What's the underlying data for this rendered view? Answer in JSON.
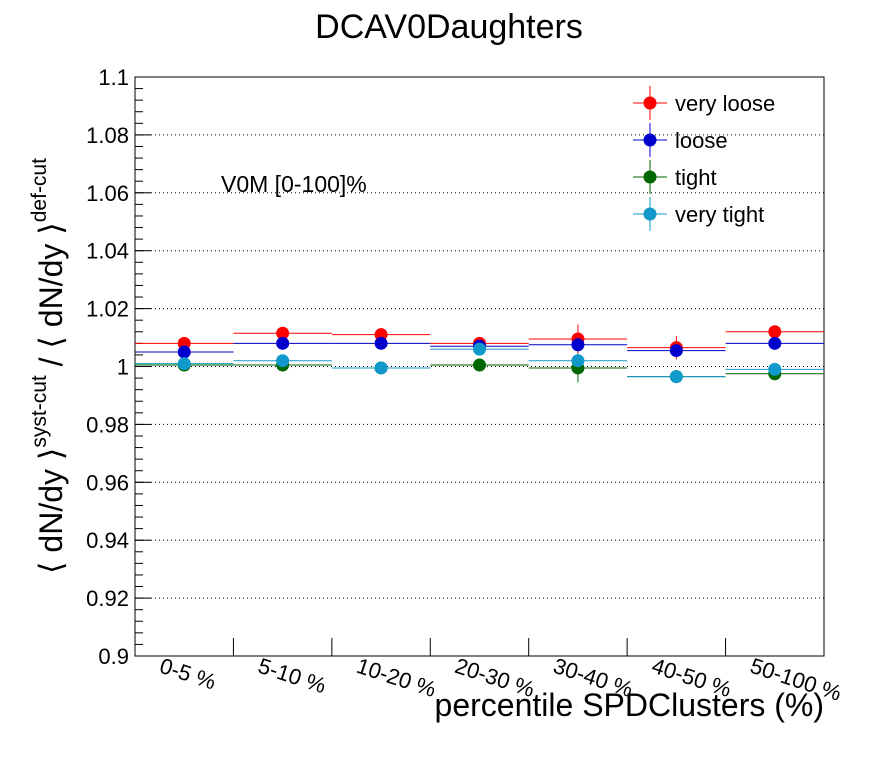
{
  "chart_data": {
    "type": "scatter",
    "title": "DCAV0Daughters",
    "xlabel": "percentile SPDClusters (%)",
    "ylabel_parts": {
      "open1": "⟨ dN/dy ⟩",
      "sup1": "syst-cut",
      "mid": " / ",
      "open2": "⟨ dN/dy ⟩",
      "sup2": "def-cut"
    },
    "annotation": "V0M [0-100]%",
    "categories": [
      "0-5 %",
      "5-10 %",
      "10-20 %",
      "20-30 %",
      "30-40 %",
      "40-50 %",
      "50-100 %"
    ],
    "ylim": [
      0.9,
      1.1
    ],
    "yticks": [
      "0.9",
      "0.92",
      "0.94",
      "0.96",
      "0.98",
      "1",
      "1.02",
      "1.04",
      "1.06",
      "1.08",
      "1.1"
    ],
    "grid": "horizontal dotted",
    "legend_position": "top-right",
    "series": [
      {
        "name": "very loose",
        "color": "#ff0000",
        "values": [
          1.008,
          1.0115,
          1.011,
          1.008,
          1.0095,
          1.0065,
          1.012
        ],
        "errors": [
          0.001,
          0.001,
          0.001,
          0.001,
          0.005,
          0.004,
          0.001
        ]
      },
      {
        "name": "loose",
        "color": "#0000cc",
        "values": [
          1.005,
          1.008,
          1.008,
          1.007,
          1.0075,
          1.0055,
          1.008
        ],
        "errors": [
          0.001,
          0.001,
          0.001,
          0.001,
          0.002,
          0.002,
          0.001
        ]
      },
      {
        "name": "tight",
        "color": "#006600",
        "values": [
          1.0005,
          1.0005,
          0.9995,
          1.0005,
          0.9995,
          0.9965,
          0.9975
        ],
        "errors": [
          0.001,
          0.001,
          0.001,
          0.001,
          0.005,
          0.001,
          0.001
        ]
      },
      {
        "name": "very tight",
        "color": "#1199cc",
        "values": [
          1.001,
          1.002,
          0.9995,
          1.006,
          1.002,
          0.9965,
          0.999
        ],
        "errors": [
          0.001,
          0.001,
          0.001,
          0.001,
          0.002,
          0.001,
          0.001
        ]
      }
    ]
  }
}
